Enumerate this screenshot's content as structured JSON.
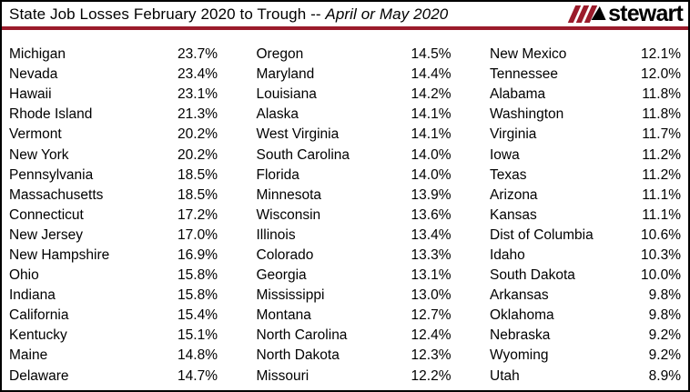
{
  "header": {
    "title_regular": "State Job Losses February 2020 to Trough -- ",
    "title_italic": "April or May 2020",
    "logo_text": "stewart"
  },
  "colors": {
    "brand_red": "#9b1b2b",
    "border_black": "#000000",
    "text": "#000000",
    "background": "#ffffff"
  },
  "icons": {
    "logo_slashes": "stewart-triple-slash-icon",
    "logo_peak": "stewart-peak-icon"
  },
  "chart_data": {
    "type": "table",
    "title": "State Job Losses February 2020 to Trough -- April or May 2020",
    "unit": "%",
    "value_format": "one_decimal_percent",
    "columns": [
      {
        "rows": [
          [
            "Michigan",
            23.7
          ],
          [
            "Nevada",
            23.4
          ],
          [
            "Hawaii",
            23.1
          ],
          [
            "Rhode Island",
            21.3
          ],
          [
            "Vermont",
            20.2
          ],
          [
            "New York",
            20.2
          ],
          [
            "Pennsylvania",
            18.5
          ],
          [
            "Massachusetts",
            18.5
          ],
          [
            "Connecticut",
            17.2
          ],
          [
            "New Jersey",
            17.0
          ],
          [
            "New Hampshire",
            16.9
          ],
          [
            "Ohio",
            15.8
          ],
          [
            "Indiana",
            15.8
          ],
          [
            "California",
            15.4
          ],
          [
            "Kentucky",
            15.1
          ],
          [
            "Maine",
            14.8
          ],
          [
            "Delaware",
            14.7
          ]
        ]
      },
      {
        "rows": [
          [
            "Oregon",
            14.5
          ],
          [
            "Maryland",
            14.4
          ],
          [
            "Louisiana",
            14.2
          ],
          [
            "Alaska",
            14.1
          ],
          [
            "West Virginia",
            14.1
          ],
          [
            "South Carolina",
            14.0
          ],
          [
            "Florida",
            14.0
          ],
          [
            "Minnesota",
            13.9
          ],
          [
            "Wisconsin",
            13.6
          ],
          [
            "Illinois",
            13.4
          ],
          [
            "Colorado",
            13.3
          ],
          [
            "Georgia",
            13.1
          ],
          [
            "Mississippi",
            13.0
          ],
          [
            "Montana",
            12.7
          ],
          [
            "North Carolina",
            12.4
          ],
          [
            "North Dakota",
            12.3
          ],
          [
            "Missouri",
            12.2
          ]
        ]
      },
      {
        "rows": [
          [
            "New Mexico",
            12.1
          ],
          [
            "Tennessee",
            12.0
          ],
          [
            "Alabama",
            11.8
          ],
          [
            "Washington",
            11.8
          ],
          [
            "Virginia",
            11.7
          ],
          [
            "Iowa",
            11.2
          ],
          [
            "Texas",
            11.2
          ],
          [
            "Arizona",
            11.1
          ],
          [
            "Kansas",
            11.1
          ],
          [
            "Dist of Columbia",
            10.6
          ],
          [
            "Idaho",
            10.3
          ],
          [
            "South Dakota",
            10.0
          ],
          [
            "Arkansas",
            9.8
          ],
          [
            "Oklahoma",
            9.8
          ],
          [
            "Nebraska",
            9.2
          ],
          [
            "Wyoming",
            9.2
          ],
          [
            "Utah",
            8.9
          ]
        ]
      }
    ]
  }
}
